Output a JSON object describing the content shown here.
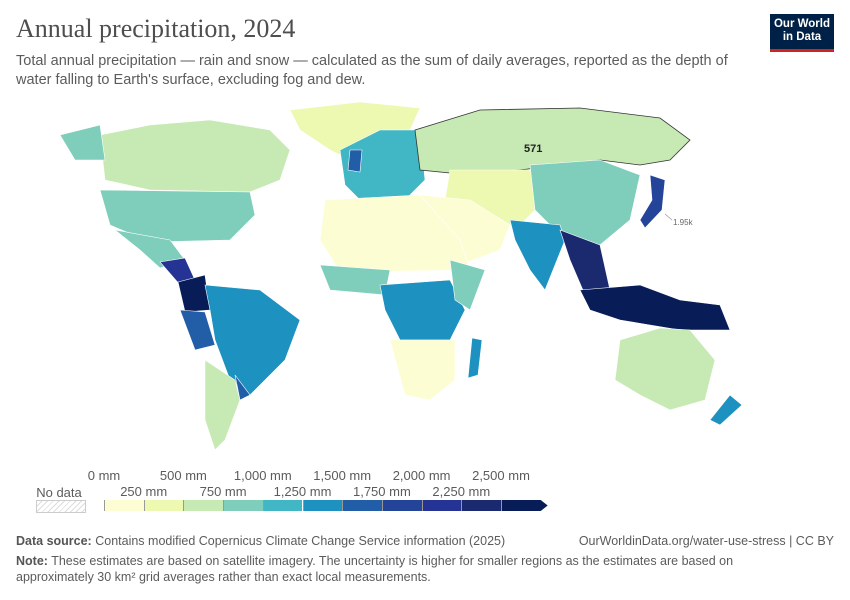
{
  "header": {
    "title": "Annual precipitation, 2024",
    "subtitle": "Total annual precipitation — rain and snow — calculated as the sum of daily averages, reported as the depth of water falling to Earth's surface, excluding fog and dew.",
    "logo": "Our World in Data"
  },
  "map": {
    "labels": [
      {
        "region": "Russia",
        "text": "571"
      },
      {
        "region": "Japan",
        "text": "1.95k"
      }
    ]
  },
  "legend": {
    "no_data": "No data",
    "ticks_top": [
      "0 mm",
      "500 mm",
      "1,000 mm",
      "1,500 mm",
      "2,000 mm",
      "2,500 mm"
    ],
    "ticks_bottom": [
      "250 mm",
      "750 mm",
      "1,250 mm",
      "1,750 mm",
      "2,250 mm"
    ],
    "colors": [
      "#fdfdd4",
      "#edf8b1",
      "#c7e9b4",
      "#7fcdbb",
      "#41b6c4",
      "#1d91c0",
      "#225ea8",
      "#24449a",
      "#253494",
      "#1b2a6e",
      "#081d58"
    ]
  },
  "footer": {
    "source_label": "Data source:",
    "source": "Contains modified Copernicus Climate Change Service information (2025)",
    "url": "OurWorldinData.org/water-use-stress | CC BY",
    "note_label": "Note:",
    "note": "These estimates are based on satellite imagery. The uncertainty is higher for smaller regions as the estimates are based on approximately 30 km² grid averages rather than exact local measurements."
  }
}
